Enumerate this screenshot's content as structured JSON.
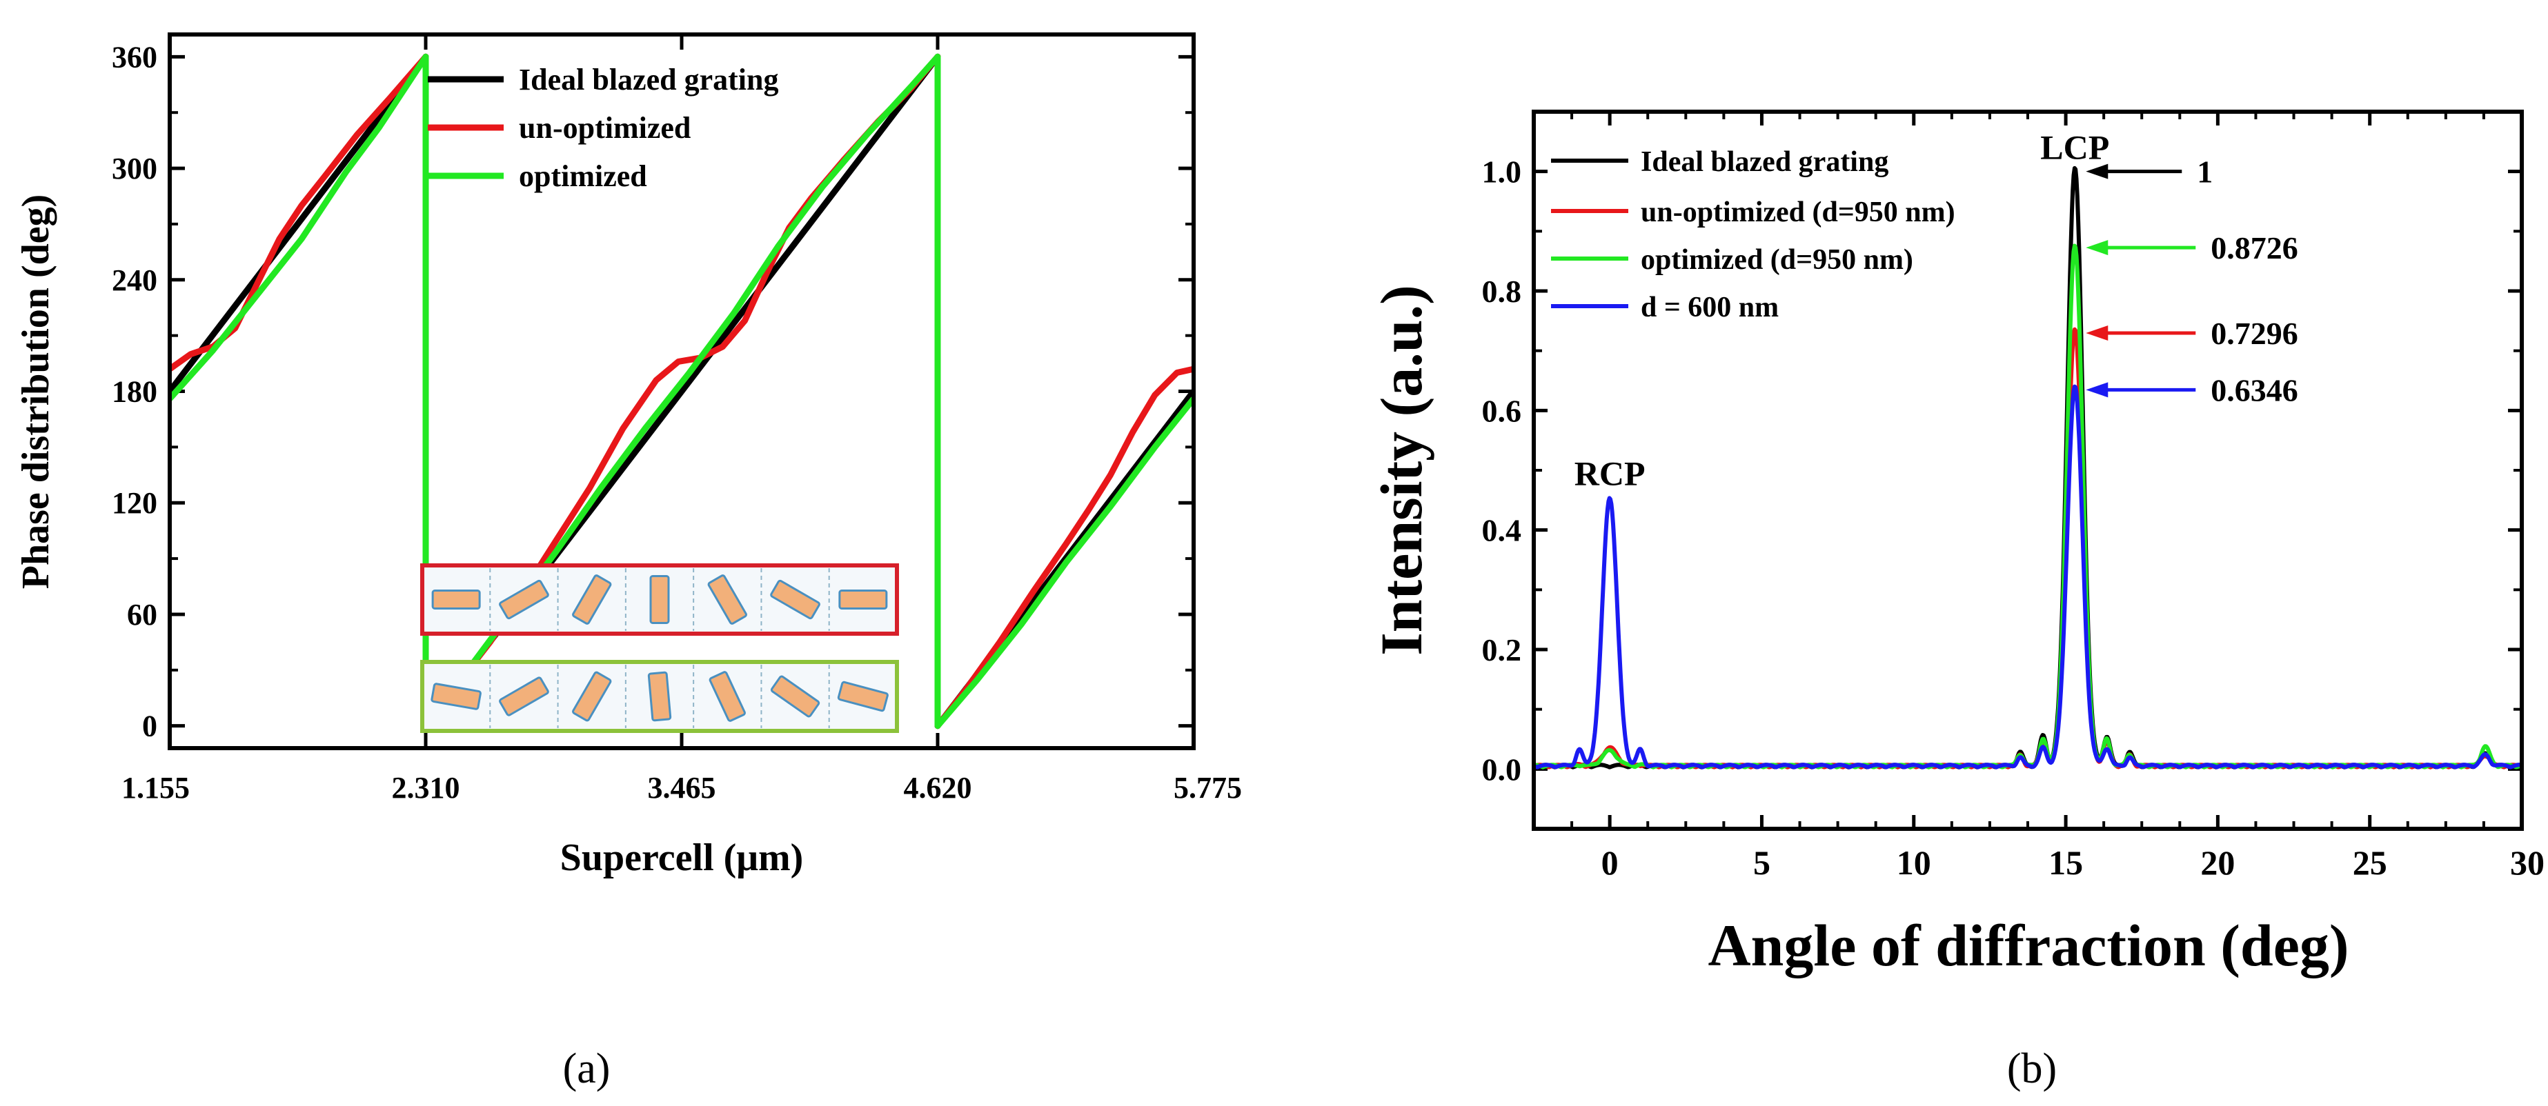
{
  "figure_labels": {
    "a": "(a)",
    "b": "(b)"
  },
  "colors": {
    "ideal": "#000000",
    "unoptimized": "#e8171a",
    "optimized": "#22e822",
    "d600": "#1a1af2",
    "inset_fill": "#f2b07a",
    "inset_stroke": "#4a90c0",
    "inset_red_frame": "#d6202a",
    "inset_green_frame": "#8cc23a"
  },
  "chart_data": [
    {
      "id": "a",
      "type": "line",
      "title": "",
      "xlabel": "Supercell (μm)",
      "ylabel": "Phase distribution (deg)",
      "xlim": [
        1.155,
        5.775
      ],
      "ylim": [
        -12,
        372
      ],
      "xticks": [
        1.155,
        2.31,
        3.465,
        4.62,
        5.775
      ],
      "xtick_labels": [
        "1.155",
        "2.310",
        "3.465",
        "4.620",
        "5.775"
      ],
      "yticks": [
        0,
        60,
        120,
        180,
        240,
        300,
        360
      ],
      "ytick_labels": [
        "0",
        "60",
        "120",
        "180",
        "240",
        "300",
        "360"
      ],
      "legend": [
        {
          "name": "Ideal blazed grating",
          "color": "#000000"
        },
        {
          "name": "un-optimized",
          "color": "#e8171a"
        },
        {
          "name": "optimized",
          "color": "#22e822"
        }
      ],
      "series": [
        {
          "name": "Ideal blazed grating",
          "color": "#000000",
          "points": [
            [
              1.155,
              180
            ],
            [
              2.31,
              360
            ],
            [
              2.31,
              0
            ],
            [
              4.62,
              360
            ],
            [
              4.62,
              0
            ],
            [
              5.775,
              180
            ]
          ]
        },
        {
          "name": "un-optimized",
          "color": "#e8171a",
          "points": [
            [
              1.155,
              192
            ],
            [
              1.25,
              200
            ],
            [
              1.35,
              204
            ],
            [
              1.45,
              214
            ],
            [
              1.55,
              238
            ],
            [
              1.65,
              262
            ],
            [
              1.75,
              280
            ],
            [
              1.85,
              295
            ],
            [
              2.0,
              318
            ],
            [
              2.15,
              338
            ],
            [
              2.31,
              360
            ],
            [
              2.31,
              0
            ],
            [
              2.45,
              22
            ],
            [
              2.6,
              45
            ],
            [
              2.75,
              72
            ],
            [
              2.9,
              100
            ],
            [
              3.05,
              128
            ],
            [
              3.2,
              160
            ],
            [
              3.35,
              186
            ],
            [
              3.45,
              196
            ],
            [
              3.55,
              198
            ],
            [
              3.65,
              204
            ],
            [
              3.75,
              218
            ],
            [
              3.85,
              244
            ],
            [
              3.95,
              268
            ],
            [
              4.05,
              284
            ],
            [
              4.2,
              305
            ],
            [
              4.35,
              325
            ],
            [
              4.5,
              343
            ],
            [
              4.62,
              360
            ],
            [
              4.62,
              0
            ],
            [
              4.75,
              20
            ],
            [
              4.9,
              45
            ],
            [
              5.05,
              72
            ],
            [
              5.2,
              98
            ],
            [
              5.3,
              116
            ],
            [
              5.4,
              135
            ],
            [
              5.5,
              158
            ],
            [
              5.6,
              178
            ],
            [
              5.7,
              190
            ],
            [
              5.775,
              192
            ]
          ]
        },
        {
          "name": "optimized",
          "color": "#22e822",
          "points": [
            [
              1.155,
              176
            ],
            [
              1.35,
              202
            ],
            [
              1.55,
              232
            ],
            [
              1.75,
              262
            ],
            [
              1.95,
              298
            ],
            [
              2.1,
              322
            ],
            [
              2.31,
              360
            ],
            [
              2.31,
              0
            ],
            [
              2.5,
              30
            ],
            [
              2.7,
              62
            ],
            [
              2.9,
              94
            ],
            [
              3.1,
              128
            ],
            [
              3.3,
              160
            ],
            [
              3.5,
              190
            ],
            [
              3.7,
              222
            ],
            [
              3.9,
              258
            ],
            [
              4.1,
              290
            ],
            [
              4.3,
              318
            ],
            [
              4.5,
              344
            ],
            [
              4.62,
              360
            ],
            [
              4.62,
              0
            ],
            [
              4.8,
              25
            ],
            [
              5.0,
              55
            ],
            [
              5.2,
              88
            ],
            [
              5.4,
              118
            ],
            [
              5.6,
              150
            ],
            [
              5.775,
              176
            ]
          ]
        }
      ],
      "inset": {
        "description_rows": 2,
        "elements_per_row": 7
      }
    },
    {
      "id": "b",
      "type": "line",
      "title": "",
      "xlabel": "Angle of diffraction (deg)",
      "ylabel": "Intensity (a.u.)",
      "xlim": [
        -2.5,
        30
      ],
      "ylim": [
        -0.1,
        1.1
      ],
      "xticks": [
        0,
        5,
        10,
        15,
        20,
        25,
        30
      ],
      "xtick_labels": [
        "0",
        "5",
        "10",
        "15",
        "20",
        "25",
        "30"
      ],
      "yticks": [
        0.0,
        0.2,
        0.4,
        0.6,
        0.8,
        1.0
      ],
      "ytick_labels": [
        "0.0",
        "0.2",
        "0.4",
        "0.6",
        "0.8",
        "1.0"
      ],
      "legend": [
        {
          "name": "Ideal blazed grating",
          "color": "#000000"
        },
        {
          "name": "un-optimized (d=950 nm)",
          "color": "#e8171a"
        },
        {
          "name": "optimized (d=950 nm)",
          "color": "#22e822"
        },
        {
          "name": "d = 600 nm",
          "color": "#1a1af2"
        }
      ],
      "peaks": {
        "lcp_x": 15.3,
        "rcp_x": 0
      },
      "series": [
        {
          "name": "Ideal blazed grating",
          "color": "#000000",
          "peak": 1.0,
          "rcp": 0.0,
          "side": 0.05
        },
        {
          "name": "un-optimized (d=950 nm)",
          "color": "#e8171a",
          "peak": 0.7296,
          "rcp": 0.03,
          "side": 0.04
        },
        {
          "name": "optimized (d=950 nm)",
          "color": "#22e822",
          "peak": 0.8726,
          "rcp": 0.025,
          "side": 0.045
        },
        {
          "name": "d = 600 nm",
          "color": "#1a1af2",
          "peak": 0.6346,
          "rcp": 0.45,
          "side": 0.03
        }
      ],
      "annotations": [
        {
          "text": "LCP"
        },
        {
          "text": "RCP"
        },
        {
          "text": "1",
          "value": 1.0,
          "color": "#000000"
        },
        {
          "text": "0.8726",
          "value": 0.8726,
          "color": "#22e822"
        },
        {
          "text": "0.7296",
          "value": 0.7296,
          "color": "#e8171a"
        },
        {
          "text": "0.6346",
          "value": 0.6346,
          "color": "#1a1af2"
        }
      ]
    }
  ]
}
